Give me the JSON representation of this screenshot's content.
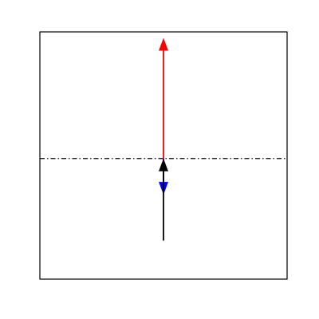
{
  "figure": {
    "frame_color": "#000000",
    "axis_line": {
      "style": "dash-dot",
      "color": "#000000",
      "value": 0
    },
    "vectors": [
      {
        "name": "red-vector",
        "color": "#ff0000",
        "from": [
          0,
          0
        ],
        "to": [
          0,
          1.0
        ]
      },
      {
        "name": "blue-vector",
        "color": "#0000ff",
        "from": [
          0,
          0
        ],
        "to": [
          0,
          -0.3
        ]
      },
      {
        "name": "black-vector",
        "color": "#000000",
        "from": [
          0,
          -0.68
        ],
        "to": [
          0,
          0
        ]
      }
    ],
    "xlim": [
      -1,
      1
    ],
    "ylim": [
      -1,
      1.05
    ]
  }
}
